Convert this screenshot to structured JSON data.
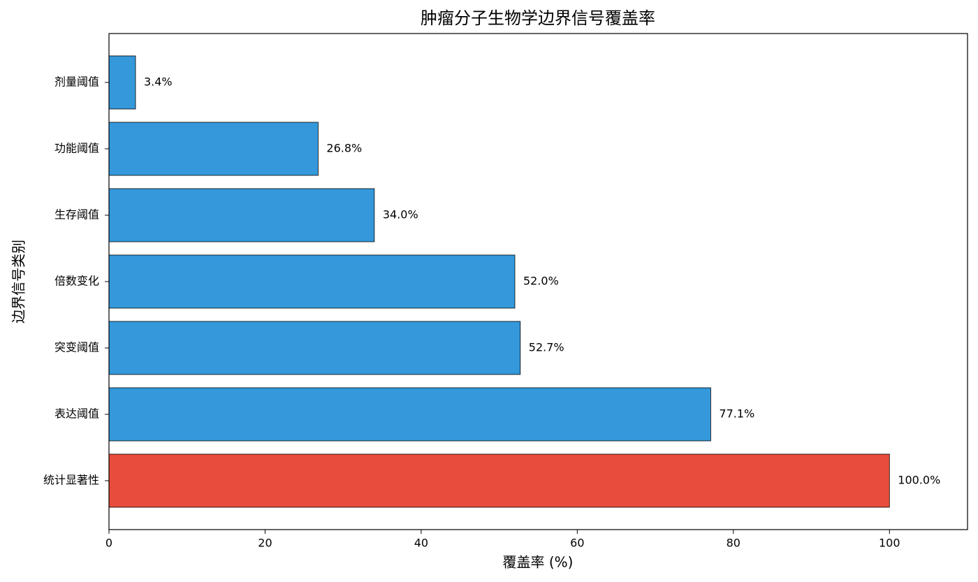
{
  "chart_data": {
    "type": "barh",
    "title": "肿瘤分子生物学边界信号覆盖率",
    "xlabel": "覆盖率 (%)",
    "ylabel": "边界信号类别",
    "categories": [
      "剂量阈值",
      "功能阈值",
      "生存阈值",
      "倍数变化",
      "突变阈值",
      "表达阈值",
      "统计显著性"
    ],
    "values": [
      3.4,
      26.8,
      34.0,
      52.0,
      52.7,
      77.1,
      100.0
    ],
    "value_labels": [
      "3.4%",
      "26.8%",
      "34.0%",
      "52.0%",
      "52.7%",
      "77.1%",
      "100.0%"
    ],
    "colors": [
      "#3498db",
      "#3498db",
      "#3498db",
      "#3498db",
      "#3498db",
      "#3498db",
      "#e74c3c"
    ],
    "xlim": [
      0,
      110
    ],
    "xticks": [
      0,
      20,
      40,
      60,
      80,
      100
    ],
    "grid": false
  }
}
